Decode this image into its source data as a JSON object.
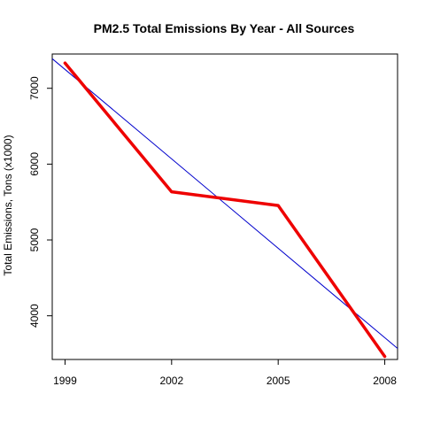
{
  "chart_data": {
    "type": "line",
    "title": "PM2.5 Total Emissions By Year - All Sources",
    "xlabel": "",
    "ylabel": "Total Emissions, Tons (x1000)",
    "x": [
      1999,
      2002,
      2005,
      2008
    ],
    "x_ticks": [
      "1999",
      "2002",
      "2005",
      "2008"
    ],
    "y_ticks": [
      4000,
      5000,
      6000,
      7000
    ],
    "xlim": [
      1998.64,
      2008.36
    ],
    "ylim": [
      3424,
      7452
    ],
    "series": [
      {
        "values": [
          7332,
          5635,
          5454,
          3464
        ],
        "color": "#ee0000"
      }
    ],
    "trend_line": {
      "color": "#0000cc",
      "from": {
        "x": 1998.64,
        "y": 7390
      },
      "to": {
        "x": 2008.36,
        "y": 3570
      }
    },
    "grid": false,
    "legend": "none"
  }
}
